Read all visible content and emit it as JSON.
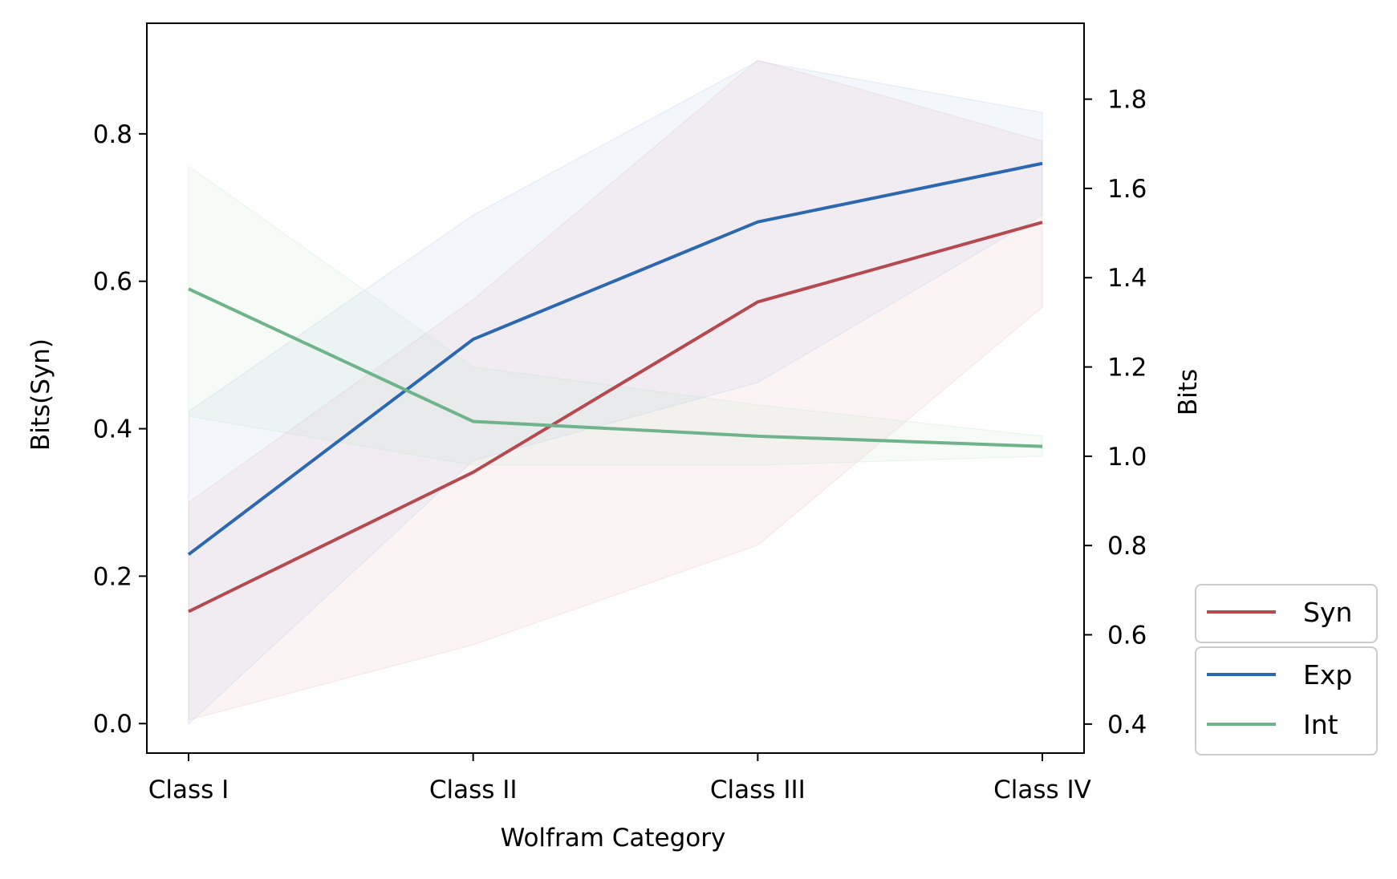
{
  "chart_data": {
    "type": "line",
    "title": "",
    "xlabel": "Wolfram Category",
    "ylabel_left": "Bits(Syn)",
    "ylabel_right": "Bits",
    "categories": [
      "Class I",
      "Class II",
      "Class III",
      "Class IV"
    ],
    "ylim_left": [
      -0.04,
      0.95
    ],
    "ylim_right": [
      0.335,
      1.97
    ],
    "yticks_left": [
      0.0,
      0.2,
      0.4,
      0.6,
      0.8
    ],
    "yticks_right": [
      0.4,
      0.6,
      0.8,
      1.0,
      1.2,
      1.4,
      1.6,
      1.8
    ],
    "ytick_labels_left": [
      "0.0",
      "0.2",
      "0.4",
      "0.6",
      "0.8"
    ],
    "ytick_labels_right": [
      "0.4",
      "0.6",
      "0.8",
      "1.0",
      "1.2",
      "1.4",
      "1.6",
      "1.8"
    ],
    "grid": false,
    "legend_placement": "outside-lower-right",
    "series": [
      {
        "name": "Syn",
        "axis": "left",
        "color": "#b5494f",
        "values": [
          0.152,
          0.341,
          0.572,
          0.68
        ],
        "band_low": [
          0.005,
          0.107,
          0.242,
          0.565
        ],
        "band_high": [
          0.3,
          0.575,
          0.9,
          0.79
        ],
        "band_color": "#e8b4b4"
      },
      {
        "name": "Exp",
        "axis": "right",
        "color": "#2c67b1",
        "values": [
          0.78,
          1.262,
          1.525,
          1.656
        ],
        "band_low": [
          0.4,
          0.99,
          1.165,
          1.54
        ],
        "band_high": [
          1.1,
          1.54,
          1.885,
          1.77
        ],
        "band_color": "#a9c2e6"
      },
      {
        "name": "Int",
        "axis": "right",
        "color": "#6fb38b",
        "values": [
          1.375,
          1.078,
          1.045,
          1.022
        ],
        "band_low": [
          1.09,
          0.98,
          0.98,
          1.0
        ],
        "band_high": [
          1.65,
          1.2,
          1.115,
          1.045
        ],
        "band_color": "#bfe0c8"
      }
    ],
    "legend_groups": [
      [
        "Syn"
      ],
      [
        "Exp",
        "Int"
      ]
    ]
  }
}
